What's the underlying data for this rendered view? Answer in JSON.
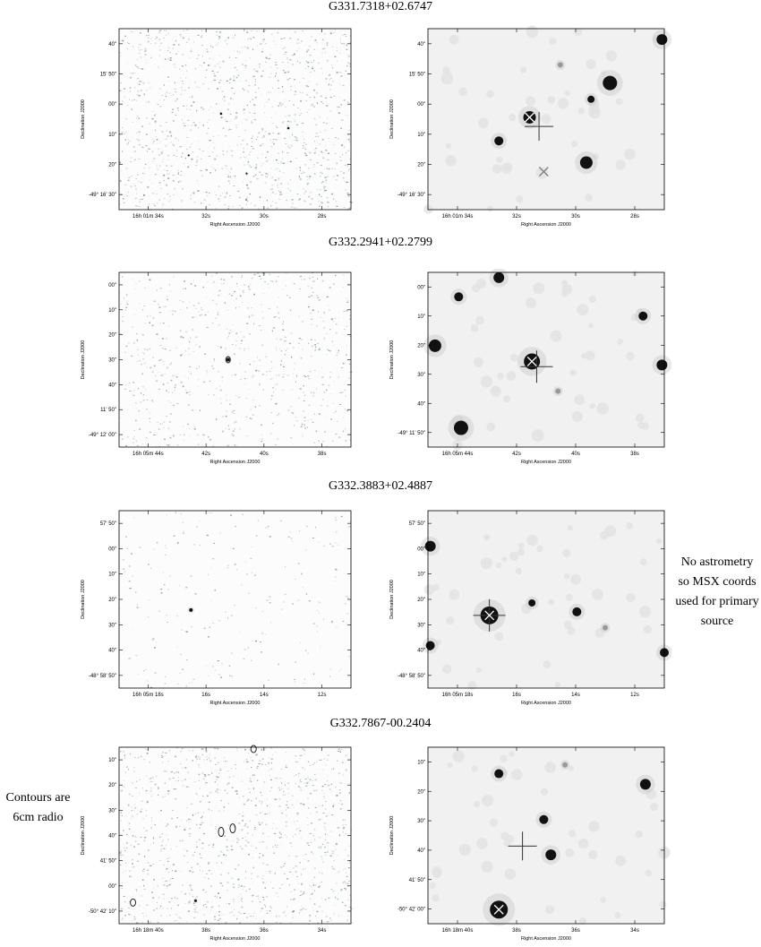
{
  "rows": [
    {
      "title": "G331.7318+02.6747",
      "left": {
        "yticks": [
          "40\"",
          "15' 50\"",
          "00\"",
          "10\"",
          "20\"",
          "-49° 16' 30\""
        ],
        "xticks": [
          "16h 01m 34s",
          "32s",
          "30s",
          "28s"
        ],
        "xlabel": "Right Ascension J2000",
        "ylabel": "Declination J2000"
      },
      "right": {
        "yticks": [
          "40\"",
          "15' 50\"",
          "00\"",
          "10\"",
          "20\"",
          "-49° 16' 30\""
        ],
        "xticks": [
          "16h 01m 34s",
          "32s",
          "30s",
          "28s"
        ],
        "xlabel": "Right Ascension J2000",
        "ylabel": "Declination J2000"
      }
    },
    {
      "title": "G332.2941+02.2799",
      "left": {
        "yticks": [
          "00\"",
          "10\"",
          "20\"",
          "30\"",
          "40\"",
          "11' 50\"",
          "-49° 12' 00\""
        ],
        "xticks": [
          "16h 05m 44s",
          "42s",
          "40s",
          "38s"
        ],
        "xlabel": "Right Ascension J2000",
        "ylabel": "Declination J2000"
      },
      "right": {
        "yticks": [
          "00\"",
          "10\"",
          "20\"",
          "30\"",
          "40\"",
          "-49° 11' 50\""
        ],
        "xticks": [
          "16h 05m 44s",
          "42s",
          "40s",
          "38s"
        ],
        "xlabel": "Right Ascension J2000",
        "ylabel": "Declination J2000"
      }
    },
    {
      "title": "G332.3883+02.4887",
      "left": {
        "yticks": [
          "57' 50\"",
          "00\"",
          "10\"",
          "20\"",
          "30\"",
          "40\"",
          "-48° 58' 50\""
        ],
        "xticks": [
          "16h 05m 18s",
          "16s",
          "14s",
          "12s"
        ],
        "xlabel": "Right Ascension J2000",
        "ylabel": "Declination J2000"
      },
      "right": {
        "yticks": [
          "57' 50\"",
          "00\"",
          "10\"",
          "20\"",
          "30\"",
          "40\"",
          "-48° 58' 50\""
        ],
        "xticks": [
          "16h 05m 18s",
          "16s",
          "14s",
          "12s"
        ],
        "xlabel": "Right Ascension J2000",
        "ylabel": "Declination J2000"
      }
    },
    {
      "title": "G332.7867-00.2404",
      "left": {
        "yticks": [
          "10\"",
          "20\"",
          "30\"",
          "40\"",
          "41' 50\"",
          "00\"",
          "-50° 42' 10\""
        ],
        "xticks": [
          "16h 18m 40s",
          "38s",
          "36s",
          "34s"
        ],
        "xlabel": "Right Ascension J2000",
        "ylabel": "Declination J2000"
      },
      "right": {
        "yticks": [
          "10\"",
          "20\"",
          "30\"",
          "40\"",
          "41' 50\"",
          "-50° 42' 00\""
        ],
        "xticks": [
          "16h 18m 40s",
          "38s",
          "36s",
          "34s"
        ],
        "xlabel": "Right Ascension J2000",
        "ylabel": "Declination J2000"
      }
    }
  ],
  "notes": {
    "astrometry": [
      "No astrometry",
      "so MSX coords",
      "used for primary",
      "source"
    ],
    "contours": [
      "Contours are",
      "6cm radio"
    ]
  }
}
